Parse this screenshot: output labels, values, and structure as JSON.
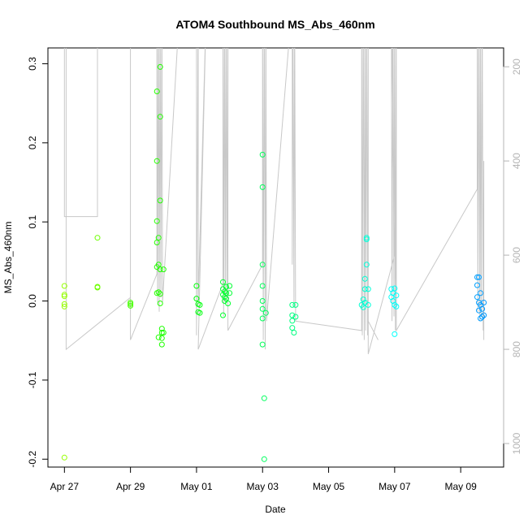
{
  "chart_data": {
    "type": "scatter",
    "title": "ATOM4 Southbound MS_Abs_460nm",
    "xlabel": "Date",
    "ylabel": "MS_Abs_460nm",
    "x_ticks": [
      "Apr 27",
      "Apr 29",
      "May 01",
      "May 03",
      "May 05",
      "May 07",
      "May 09"
    ],
    "x_tick_days": [
      0,
      2,
      4,
      6,
      8,
      10,
      12
    ],
    "xlim": [
      -0.5,
      13.3
    ],
    "ylim": [
      -0.21,
      0.32
    ],
    "y_ticks": [
      -0.2,
      -0.1,
      0.0,
      0.1,
      0.2,
      0.3
    ],
    "y_tick_labels": [
      "-0.2",
      "-0.1",
      "0.0",
      "0.1",
      "0.2",
      "0.3"
    ],
    "y2_ticks": [
      200,
      400,
      600,
      800,
      1000
    ],
    "y2_tick_labels": [
      "200",
      "400",
      "600",
      "800",
      "1000"
    ],
    "y2lim": [
      1050,
      160
    ],
    "grid": false,
    "colors": {
      "line": "#c8c8c8",
      "right_axis": "#b4b4b4"
    },
    "points": [
      {
        "x": 0.0,
        "y": 0.019
      },
      {
        "x": 0.0,
        "y": 0.008
      },
      {
        "x": 0.0,
        "y": 0.006
      },
      {
        "x": 0.0,
        "y": -0.004
      },
      {
        "x": 0.0,
        "y": -0.007
      },
      {
        "x": 0.0,
        "y": -0.198
      },
      {
        "x": 1.0,
        "y": 0.08
      },
      {
        "x": 1.0,
        "y": 0.018
      },
      {
        "x": 1.0,
        "y": 0.017
      },
      {
        "x": 2.0,
        "y": -0.002
      },
      {
        "x": 2.0,
        "y": -0.004
      },
      {
        "x": 2.0,
        "y": -0.006
      },
      {
        "x": 2.8,
        "y": 0.265
      },
      {
        "x": 2.8,
        "y": 0.177
      },
      {
        "x": 2.8,
        "y": 0.101
      },
      {
        "x": 2.8,
        "y": 0.074
      },
      {
        "x": 2.8,
        "y": 0.043
      },
      {
        "x": 2.8,
        "y": 0.01
      },
      {
        "x": 2.85,
        "y": 0.08
      },
      {
        "x": 2.85,
        "y": 0.046
      },
      {
        "x": 2.85,
        "y": 0.011
      },
      {
        "x": 2.85,
        "y": -0.046
      },
      {
        "x": 2.9,
        "y": 0.296
      },
      {
        "x": 2.9,
        "y": 0.233
      },
      {
        "x": 2.9,
        "y": 0.127
      },
      {
        "x": 2.9,
        "y": 0.04
      },
      {
        "x": 2.9,
        "y": 0.009
      },
      {
        "x": 2.9,
        "y": -0.003
      },
      {
        "x": 2.95,
        "y": -0.035
      },
      {
        "x": 2.95,
        "y": -0.04
      },
      {
        "x": 2.95,
        "y": -0.047
      },
      {
        "x": 2.95,
        "y": -0.055
      },
      {
        "x": 3.0,
        "y": 0.04
      },
      {
        "x": 3.0,
        "y": -0.04
      },
      {
        "x": 4.0,
        "y": 0.019
      },
      {
        "x": 4.0,
        "y": 0.003
      },
      {
        "x": 4.05,
        "y": -0.004
      },
      {
        "x": 4.05,
        "y": -0.014
      },
      {
        "x": 4.1,
        "y": -0.005
      },
      {
        "x": 4.1,
        "y": -0.015
      },
      {
        "x": 4.8,
        "y": 0.024
      },
      {
        "x": 4.8,
        "y": 0.015
      },
      {
        "x": 4.8,
        "y": 0.008
      },
      {
        "x": 4.8,
        "y": -0.018
      },
      {
        "x": 4.85,
        "y": 0.012
      },
      {
        "x": 4.85,
        "y": 0.005
      },
      {
        "x": 4.85,
        "y": 0.0
      },
      {
        "x": 4.9,
        "y": 0.018
      },
      {
        "x": 4.9,
        "y": 0.01
      },
      {
        "x": 4.9,
        "y": 0.003
      },
      {
        "x": 4.95,
        "y": -0.003
      },
      {
        "x": 5.0,
        "y": 0.019
      },
      {
        "x": 5.0,
        "y": 0.01
      },
      {
        "x": 6.0,
        "y": 0.185
      },
      {
        "x": 6.0,
        "y": 0.144
      },
      {
        "x": 6.0,
        "y": 0.046
      },
      {
        "x": 6.0,
        "y": 0.019
      },
      {
        "x": 6.0,
        "y": 0.0
      },
      {
        "x": 6.0,
        "y": -0.01
      },
      {
        "x": 6.0,
        "y": -0.022
      },
      {
        "x": 6.0,
        "y": -0.055
      },
      {
        "x": 6.05,
        "y": -0.123
      },
      {
        "x": 6.05,
        "y": -0.2
      },
      {
        "x": 6.1,
        "y": -0.015
      },
      {
        "x": 6.9,
        "y": -0.005
      },
      {
        "x": 6.9,
        "y": -0.018
      },
      {
        "x": 6.9,
        "y": -0.025
      },
      {
        "x": 6.9,
        "y": -0.034
      },
      {
        "x": 6.95,
        "y": -0.04
      },
      {
        "x": 7.0,
        "y": -0.005
      },
      {
        "x": 7.0,
        "y": -0.02
      },
      {
        "x": 9.0,
        "y": -0.005
      },
      {
        "x": 9.05,
        "y": 0.002
      },
      {
        "x": 9.05,
        "y": -0.008
      },
      {
        "x": 9.1,
        "y": 0.015
      },
      {
        "x": 9.1,
        "y": 0.028
      },
      {
        "x": 9.1,
        "y": -0.002
      },
      {
        "x": 9.15,
        "y": 0.08
      },
      {
        "x": 9.15,
        "y": 0.078
      },
      {
        "x": 9.15,
        "y": 0.046
      },
      {
        "x": 9.2,
        "y": 0.015
      },
      {
        "x": 9.2,
        "y": -0.005
      },
      {
        "x": 9.9,
        "y": 0.015
      },
      {
        "x": 9.9,
        "y": 0.005
      },
      {
        "x": 9.95,
        "y": 0.01
      },
      {
        "x": 9.95,
        "y": 0.0
      },
      {
        "x": 10.0,
        "y": 0.016
      },
      {
        "x": 10.0,
        "y": -0.005
      },
      {
        "x": 10.0,
        "y": -0.042
      },
      {
        "x": 10.05,
        "y": 0.007
      },
      {
        "x": 10.05,
        "y": -0.007
      },
      {
        "x": 12.5,
        "y": 0.03
      },
      {
        "x": 12.5,
        "y": 0.02
      },
      {
        "x": 12.5,
        "y": 0.005
      },
      {
        "x": 12.55,
        "y": 0.03
      },
      {
        "x": 12.55,
        "y": -0.002
      },
      {
        "x": 12.6,
        "y": 0.01
      },
      {
        "x": 12.6,
        "y": -0.005
      },
      {
        "x": 12.65,
        "y": -0.01
      },
      {
        "x": 12.65,
        "y": -0.02
      },
      {
        "x": 12.7,
        "y": -0.002
      },
      {
        "x": 12.7,
        "y": -0.018
      },
      {
        "x": 12.55,
        "y": -0.012
      },
      {
        "x": 12.6,
        "y": -0.022
      }
    ],
    "depth_line": [
      [
        0.0,
        60
      ],
      [
        0.0,
        518
      ],
      [
        1.0,
        518
      ],
      [
        1.0,
        60
      ],
      [
        1.0,
        60
      ],
      [
        0.0,
        60
      ],
      [
        0.05,
        60
      ],
      [
        0.05,
        800
      ],
      [
        2.0,
        690
      ],
      [
        2.0,
        60
      ],
      [
        2.0,
        780
      ],
      [
        2.8,
        640
      ],
      [
        2.8,
        60
      ],
      [
        2.82,
        700
      ],
      [
        2.85,
        60
      ],
      [
        2.87,
        720
      ],
      [
        2.9,
        60
      ],
      [
        2.92,
        690
      ],
      [
        2.95,
        60
      ],
      [
        2.97,
        700
      ],
      [
        3.5,
        60
      ],
      [
        4.0,
        60
      ],
      [
        4.0,
        770
      ],
      [
        4.05,
        60
      ],
      [
        4.05,
        700
      ],
      [
        4.3,
        60
      ],
      [
        4.05,
        800
      ],
      [
        4.8,
        660
      ],
      [
        4.8,
        60
      ],
      [
        4.82,
        730
      ],
      [
        4.85,
        60
      ],
      [
        4.87,
        700
      ],
      [
        4.9,
        60
      ],
      [
        4.92,
        690
      ],
      [
        4.95,
        60
      ],
      [
        4.95,
        760
      ],
      [
        6.0,
        620
      ],
      [
        6.0,
        60
      ],
      [
        6.02,
        780
      ],
      [
        6.05,
        60
      ],
      [
        6.08,
        800
      ],
      [
        6.1,
        60
      ],
      [
        6.12,
        740
      ],
      [
        6.9,
        60
      ],
      [
        6.9,
        620
      ],
      [
        6.92,
        60
      ],
      [
        6.95,
        700
      ],
      [
        6.97,
        60
      ],
      [
        7.0,
        740
      ],
      [
        7.0,
        740
      ],
      [
        9.0,
        760
      ],
      [
        9.0,
        60
      ],
      [
        9.02,
        770
      ],
      [
        9.05,
        60
      ],
      [
        9.08,
        780
      ],
      [
        9.1,
        60
      ],
      [
        9.12,
        760
      ],
      [
        9.15,
        60
      ],
      [
        9.18,
        770
      ],
      [
        9.2,
        60
      ],
      [
        9.2,
        800
      ],
      [
        9.2,
        740
      ],
      [
        9.5,
        780
      ],
      [
        9.2,
        740
      ],
      [
        9.2,
        810
      ],
      [
        10.0,
        600
      ],
      [
        9.9,
        60
      ],
      [
        9.92,
        740
      ],
      [
        9.95,
        60
      ],
      [
        9.98,
        730
      ],
      [
        10.0,
        60
      ],
      [
        10.02,
        760
      ],
      [
        10.05,
        60
      ],
      [
        10.05,
        760
      ],
      [
        12.5,
        460
      ],
      [
        12.5,
        60
      ],
      [
        12.52,
        720
      ],
      [
        12.55,
        60
      ],
      [
        12.58,
        740
      ],
      [
        12.6,
        60
      ],
      [
        12.62,
        730
      ],
      [
        12.65,
        60
      ],
      [
        12.68,
        760
      ],
      [
        12.7,
        400
      ],
      [
        12.7,
        780
      ]
    ]
  }
}
